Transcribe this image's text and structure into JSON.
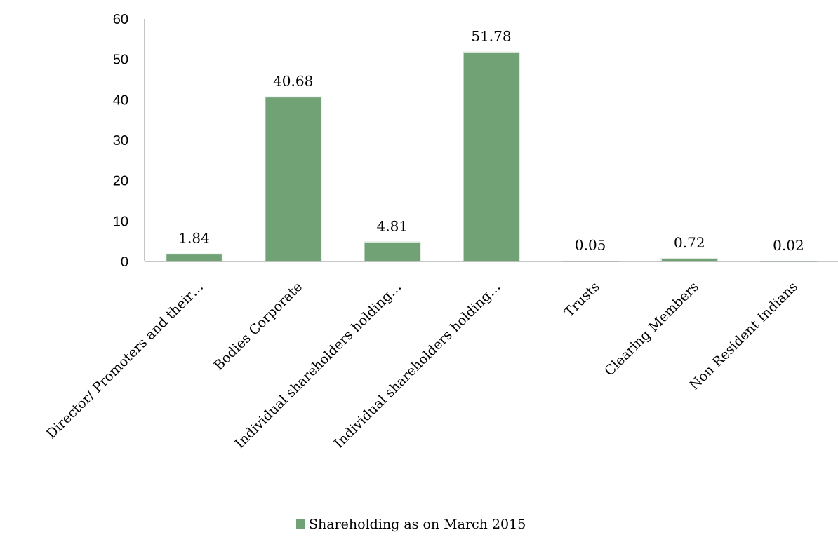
{
  "chart_data": {
    "type": "bar",
    "categories": [
      "Director/ Promoters and their…",
      "Bodies Corporate",
      "Individual shareholders holding…",
      "Individual shareholders holding…",
      "Trusts",
      "Clearing Members",
      "Non Resident Indians"
    ],
    "series": [
      {
        "name": "Shareholding as on March 2015",
        "values": [
          1.84,
          40.68,
          4.81,
          51.78,
          0.05,
          0.72,
          0.02
        ],
        "data_labels": [
          "1.84",
          "40.68",
          "4.81",
          "51.78",
          "0.05",
          "0.72",
          "0.02"
        ],
        "color": "#71a276"
      }
    ],
    "ylim": [
      0,
      60
    ],
    "yticks": [
      0,
      10,
      20,
      30,
      40,
      50,
      60
    ],
    "grid": false,
    "legend_position": "bottom",
    "title": "",
    "xlabel": "",
    "ylabel": ""
  }
}
